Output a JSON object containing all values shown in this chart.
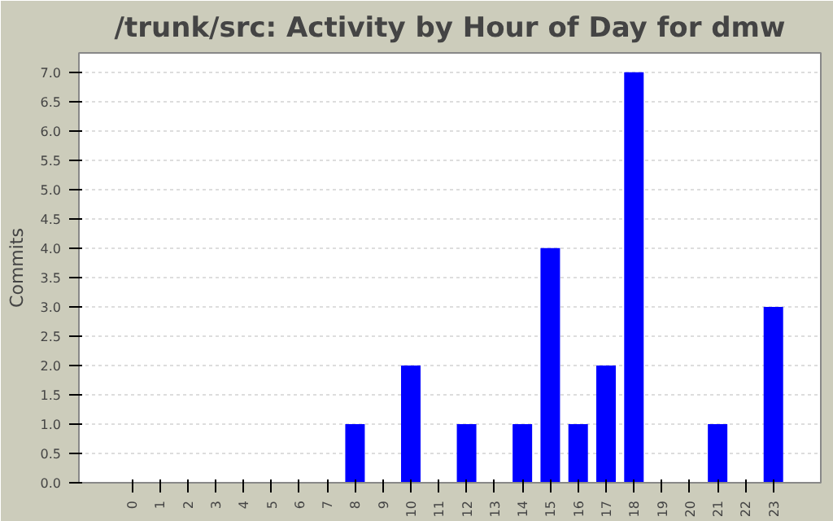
{
  "chart_data": {
    "type": "bar",
    "title": "/trunk/src: Activity by Hour of Day for dmw",
    "ylabel": "Commits",
    "categories": [
      "0",
      "1",
      "2",
      "3",
      "4",
      "5",
      "6",
      "7",
      "8",
      "9",
      "10",
      "11",
      "12",
      "13",
      "14",
      "15",
      "16",
      "17",
      "18",
      "19",
      "20",
      "21",
      "22",
      "23"
    ],
    "values": [
      0,
      0,
      0,
      0,
      0,
      0,
      0,
      0,
      1,
      0,
      2,
      0,
      1,
      0,
      1,
      4,
      1,
      2,
      7,
      0,
      0,
      1,
      0,
      3
    ],
    "color": "#0000ff",
    "ylim": [
      0,
      7.33
    ],
    "yticks": [
      {
        "value": 0,
        "label": "0.0"
      },
      {
        "value": 0.5,
        "label": "0.5"
      },
      {
        "value": 1,
        "label": "1.0"
      },
      {
        "value": 1.5,
        "label": "1.5"
      },
      {
        "value": 2,
        "label": "2.0"
      },
      {
        "value": 2.5,
        "label": "2.5"
      },
      {
        "value": 3,
        "label": "3.0"
      },
      {
        "value": 3.5,
        "label": "3.5"
      },
      {
        "value": 4,
        "label": "4.0"
      },
      {
        "value": 4.5,
        "label": "4.5"
      },
      {
        "value": 5,
        "label": "5.0"
      },
      {
        "value": 5.5,
        "label": "5.5"
      },
      {
        "value": 6,
        "label": "6.0"
      },
      {
        "value": 6.5,
        "label": "6.5"
      },
      {
        "value": 7,
        "label": "7.0"
      }
    ],
    "grid": "y"
  }
}
